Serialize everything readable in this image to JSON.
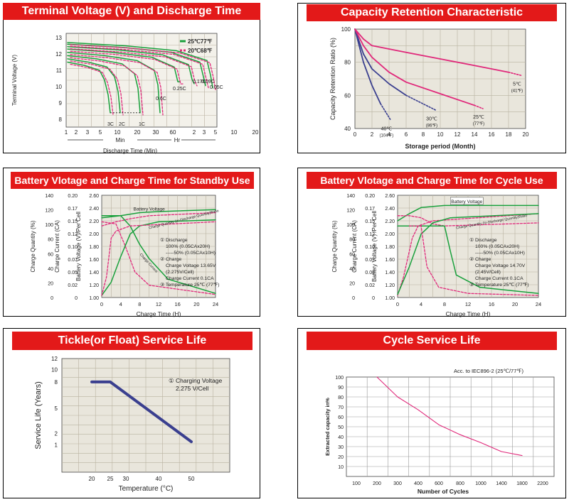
{
  "colors": {
    "red_title": "#e31919",
    "green": "#19a03c",
    "magenta": "#e0287a",
    "navy": "#3a3f8f",
    "grid": "#b9b2a0",
    "plotbg": "#e9e6dc"
  },
  "charts": [
    {
      "title": "Terminal Voltage (V) and Discharge Time",
      "chart_data": {
        "type": "line",
        "ylabel": "Terminal Voltage (V)",
        "xlabel": "Discharge Time (Min)",
        "yticks": [
          "13",
          "12",
          "11",
          "10",
          "9",
          "8"
        ],
        "xticks_min": [
          "1",
          "2",
          "3",
          "5",
          "10",
          "20",
          "30",
          "60"
        ],
        "xticks_hr": [
          "2",
          "3",
          "5",
          "10",
          "20"
        ],
        "x_group_labels": [
          "Min",
          "Hr"
        ],
        "legend": [
          {
            "name": "25℃77℉",
            "style": "solid",
            "color": "green"
          },
          {
            "name": "20℃68℉",
            "style": "dashed",
            "color": "magenta"
          }
        ],
        "curve_labels": [
          "3C",
          "2C",
          "1C",
          "0.6C",
          "0.25C",
          "0.17C",
          "0.09C",
          "0.05C"
        ]
      }
    },
    {
      "title": "Capacity Retention Characteristic",
      "chart_data": {
        "type": "line",
        "ylabel": "Capacity Retention Ratio (%)",
        "xlabel": "Storage period (Month)",
        "xticks": [
          "0",
          "2",
          "4",
          "6",
          "8",
          "10",
          "12",
          "14",
          "16",
          "18",
          "20"
        ],
        "yticks": [
          "100",
          "80",
          "60",
          "40"
        ],
        "xlim": [
          0,
          20
        ],
        "ylim": [
          40,
          100
        ],
        "series": [
          {
            "name": "40℃",
            "sub": "(104℉)",
            "color": "navy",
            "x": [
              0,
              1,
              2,
              3,
              4.2
            ],
            "y": [
              100,
              80,
              66,
              55,
              45
            ]
          },
          {
            "name": "30℃",
            "sub": "(86℉)",
            "color": "navy",
            "x": [
              0,
              1,
              2,
              4,
              6,
              9.5
            ],
            "y": [
              100,
              85,
              76,
              67,
              60,
              51
            ]
          },
          {
            "name": "25℃",
            "sub": "(77℉)",
            "color": "magenta",
            "x": [
              0,
              1,
              2,
              4,
              6,
              10,
              14,
              15
            ],
            "y": [
              100,
              90,
              83,
              74,
              68,
              61,
              54,
              52
            ]
          },
          {
            "name": "5℃",
            "sub": "(41℉)",
            "color": "magenta",
            "x": [
              0,
              1,
              2,
              6,
              10,
              14,
              18,
              19.5
            ],
            "y": [
              100,
              94,
              90,
              86,
              82,
              78,
              74,
              72
            ]
          }
        ]
      }
    },
    {
      "title": "Battery Vlotage and Charge Time for Standby Use",
      "chart_data": {
        "type": "line",
        "xlabel": "Charge Time (H)",
        "xticks": [
          "0",
          "4",
          "8",
          "12",
          "16",
          "20",
          "24"
        ],
        "y1label": "Charge Quantity (%)",
        "y1ticks": [
          "140",
          "120",
          "100",
          "80",
          "60",
          "40",
          "20",
          "0"
        ],
        "y2label": "Charge Current (CA)",
        "y2ticks": [
          "0.20",
          "0.17",
          "0.15",
          "0.12",
          "0.10",
          "0.07",
          "0.05",
          "0.02",
          "0"
        ],
        "y3label": "Battery Voltage (V)/Per Cell",
        "y3ticks": [
          "2.60",
          "2.40",
          "2.20",
          "2.00",
          "1.80",
          "1.60",
          "1.40",
          "1.20",
          "1.00"
        ],
        "curve_labels": [
          "Battery Voltage",
          "Charge Quantity (In-Discharge Quantity)Ratio",
          "Charge Current"
        ],
        "notes": [
          "① Discharge",
          "100% (0.05CAx20H)",
          "-----50% (0.05CAx10H)",
          "② Charge",
          "Charge Voltage 13.65V",
          "(2.275V/Cell)",
          "Charge Current 0.1CA",
          "③ Temperature 25℃ (77℉)"
        ]
      }
    },
    {
      "title": "Battery Vlotage and Charge Time for Cycle Use",
      "chart_data": {
        "type": "line",
        "xlabel": "Charge Time (H)",
        "xticks": [
          "0",
          "4",
          "8",
          "12",
          "16",
          "20",
          "24"
        ],
        "y1label": "Charge Quantity (%)",
        "y1ticks": [
          "140",
          "120",
          "100",
          "80",
          "60",
          "40",
          "20",
          "0"
        ],
        "y2label": "Charge Current (CA)",
        "y2ticks": [
          "0.20",
          "0.17",
          "0.15",
          "0.12",
          "0.10",
          "0.07",
          "0.05",
          "0.02",
          "0"
        ],
        "y3label": "Battery Voltage (V) /Per Cell",
        "y3ticks": [
          "2.60",
          "2.40",
          "2.20",
          "2.00",
          "1.80",
          "1.60",
          "1.40",
          "1.20",
          "1.00"
        ],
        "curve_labels": [
          "Battery Voltage",
          "Charge Quantity (In-Discharge Quantity)Ratio"
        ],
        "notes": [
          "① Discharge",
          "100% (0.05CAx20H)",
          "-----50% (0.05CAx10H)",
          "② Charge",
          "Charge Voltage 14.70V",
          "(2.45V/Cell)",
          "Charge Current 0.1CA",
          "③ Temperature 25℃ (77℉)"
        ]
      }
    },
    {
      "title": "Tickle(or Float) Service Life",
      "chart_data": {
        "type": "line",
        "ylabel": "Service Life (Years)",
        "xlabel": "Temperature (°C)",
        "yticks": [
          "12",
          "10",
          "8",
          "5",
          "2",
          "1"
        ],
        "xticks": [
          "20",
          "25",
          "30",
          "40",
          "50"
        ],
        "x": [
          20,
          25,
          50
        ],
        "y": [
          8,
          8,
          1.5
        ],
        "note_line1": "① Charging Voltage",
        "note_line2": "2.275 V/Cell"
      }
    },
    {
      "title": "Cycle Service Life",
      "chart_data": {
        "type": "line",
        "ylabel": "Extracted capacity in%",
        "xlabel": "Number of Cycles",
        "yticks": [
          "100",
          "90",
          "80",
          "70",
          "60",
          "50",
          "40",
          "30",
          "20",
          "10"
        ],
        "xticks": [
          "100",
          "200",
          "300",
          "400",
          "600",
          "800",
          "1000",
          "1400",
          "1800",
          "2200"
        ],
        "annotation": "Acc. to IEC896-2 (25℃/77℉)",
        "x": [
          200,
          300,
          400,
          600,
          800,
          1000,
          1400,
          1800
        ],
        "y": [
          100,
          80,
          67,
          52,
          42,
          34,
          25,
          21
        ]
      }
    }
  ]
}
